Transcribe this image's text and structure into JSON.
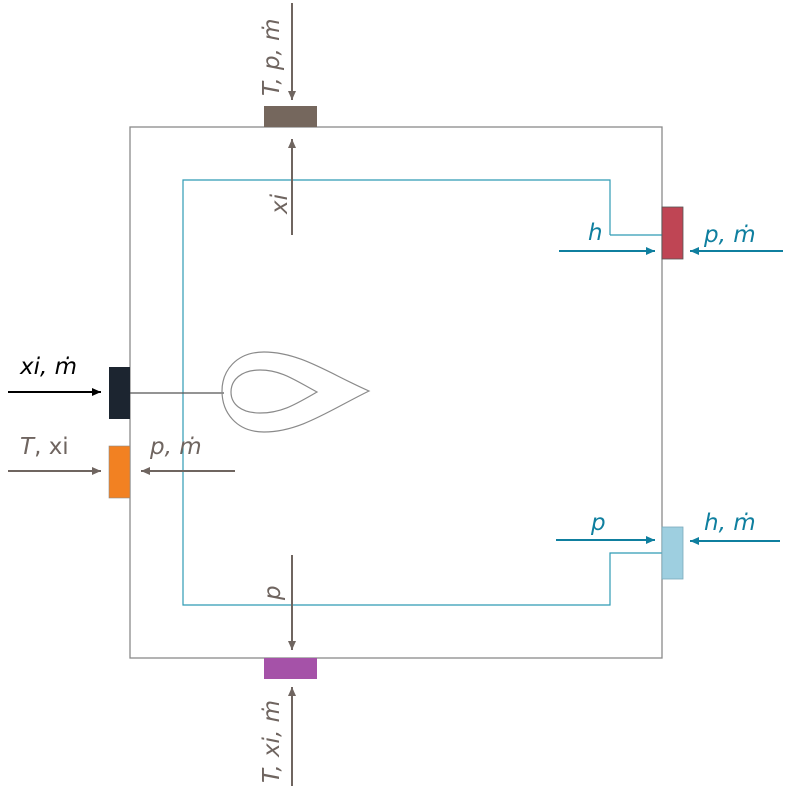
{
  "colors": {
    "gray": "#6f6560",
    "teal": "#0f7f9f",
    "black": "#000000",
    "box_outline": "#8a8a8a",
    "inner_loop": "#2f9bb5",
    "port_top": "#75675d",
    "port_bottom": "#a552a8",
    "port_left_black": "#1c2530",
    "port_left_orange": "#f28122",
    "port_right_red": "#bf4554",
    "port_right_lightblue": "#9ecfe0"
  },
  "labels": {
    "top_in": "T, p, ṁ",
    "top_inner": "xi",
    "right_upper_h": "h",
    "right_upper_pm": "p, ṁ",
    "left_upper_xim": "xi, ṁ",
    "left_lower_T": "T",
    "left_lower_sep": ", ",
    "left_lower_xi": "xi",
    "left_lower_pm": "p, ṁ",
    "right_lower_p": "p",
    "right_lower_hm": "h, ṁ",
    "bottom_inner_p": "p",
    "bottom_in": "T, xi, ṁ"
  },
  "icons": {
    "drop": "droplet-icon"
  }
}
